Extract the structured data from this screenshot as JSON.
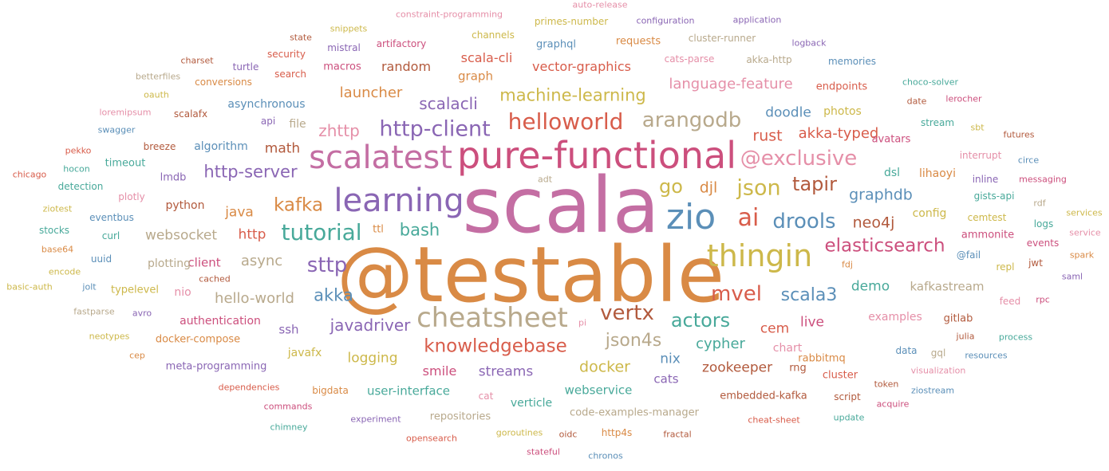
{
  "palette": {
    "pink": "#c46ea3",
    "orange": "#d98a45",
    "blue": "#5b8fb8",
    "purple": "#8a66b4",
    "teal": "#48a99a",
    "olive": "#cdb84a",
    "brown": "#b25a3d",
    "tan": "#b8a98c",
    "red": "#d85d4b",
    "rose": "#e58fa8",
    "magenta": "#cc4f7d"
  },
  "words": [
    {
      "text": "scala",
      "color": "pink"
    },
    {
      "text": "@testable",
      "color": "orange"
    },
    {
      "text": "pure-functional",
      "color": "magenta"
    },
    {
      "text": "scalatest",
      "color": "pink"
    },
    {
      "text": "learning",
      "color": "purple"
    },
    {
      "text": "zio",
      "color": "blue"
    },
    {
      "text": "thingin",
      "color": "olive"
    },
    {
      "text": "cheatsheet",
      "color": "tan"
    },
    {
      "text": "tutorial",
      "color": "teal"
    },
    {
      "text": "helloworld",
      "color": "red"
    },
    {
      "text": "http-client",
      "color": "purple"
    },
    {
      "text": "arangodb",
      "color": "tan"
    },
    {
      "text": "@exclusive",
      "color": "rose"
    },
    {
      "text": "json",
      "color": "olive"
    },
    {
      "text": "ai",
      "color": "red"
    },
    {
      "text": "drools",
      "color": "blue"
    },
    {
      "text": "vertx",
      "color": "brown"
    },
    {
      "text": "mvel",
      "color": "red"
    },
    {
      "text": "sttp",
      "color": "purple"
    },
    {
      "text": "elasticsearch",
      "color": "magenta"
    },
    {
      "text": "knowledgebase",
      "color": "red"
    },
    {
      "text": "actors",
      "color": "teal"
    },
    {
      "text": "json4s",
      "color": "tan"
    },
    {
      "text": "machine-learning",
      "color": "olive"
    },
    {
      "text": "kafka",
      "color": "orange"
    },
    {
      "text": "go",
      "color": "olive"
    },
    {
      "text": "tapir",
      "color": "brown"
    },
    {
      "text": "scala3",
      "color": "blue"
    },
    {
      "text": "http-server",
      "color": "purple"
    },
    {
      "text": "graphdb",
      "color": "blue"
    },
    {
      "text": "neo4j",
      "color": "brown"
    },
    {
      "text": "scalacli",
      "color": "purple"
    },
    {
      "text": "bash",
      "color": "teal"
    },
    {
      "text": "akka",
      "color": "blue"
    },
    {
      "text": "javadriver",
      "color": "purple"
    },
    {
      "text": "zhttp",
      "color": "rose"
    },
    {
      "text": "rust",
      "color": "red"
    },
    {
      "text": "akka-typed",
      "color": "red"
    },
    {
      "text": "hello-world",
      "color": "tan"
    },
    {
      "text": "async",
      "color": "tan"
    },
    {
      "text": "language-feature",
      "color": "rose"
    },
    {
      "text": "doodle",
      "color": "blue"
    },
    {
      "text": "launcher",
      "color": "orange"
    },
    {
      "text": "vector-graphics",
      "color": "red"
    },
    {
      "text": "djl",
      "color": "orange"
    },
    {
      "text": "cypher",
      "color": "teal"
    },
    {
      "text": "docker",
      "color": "olive"
    },
    {
      "text": "zookeeper",
      "color": "brown"
    },
    {
      "text": "live",
      "color": "magenta"
    },
    {
      "text": "cem",
      "color": "red"
    },
    {
      "text": "logging",
      "color": "olive"
    },
    {
      "text": "demo",
      "color": "teal"
    },
    {
      "text": "math",
      "color": "brown"
    },
    {
      "text": "http",
      "color": "red"
    },
    {
      "text": "java",
      "color": "orange"
    },
    {
      "text": "websocket",
      "color": "tan"
    },
    {
      "text": "random",
      "color": "brown"
    },
    {
      "text": "scala-cli",
      "color": "red"
    },
    {
      "text": "graph",
      "color": "orange"
    },
    {
      "text": "streams",
      "color": "purple"
    },
    {
      "text": "smile",
      "color": "magenta"
    },
    {
      "text": "nix",
      "color": "blue"
    },
    {
      "text": "kafkastream",
      "color": "tan"
    },
    {
      "text": "examples",
      "color": "rose"
    },
    {
      "text": "photos",
      "color": "olive"
    },
    {
      "text": "user-interface",
      "color": "teal"
    },
    {
      "text": "webservice",
      "color": "teal"
    },
    {
      "text": "client",
      "color": "magenta"
    },
    {
      "text": "python",
      "color": "brown"
    },
    {
      "text": "algorithm",
      "color": "blue"
    },
    {
      "text": "asynchronous",
      "color": "blue"
    },
    {
      "text": "lihaoyi",
      "color": "orange"
    },
    {
      "text": "ssh",
      "color": "purple"
    },
    {
      "text": "authentication",
      "color": "magenta"
    },
    {
      "text": "avatars",
      "color": "magenta"
    },
    {
      "text": "endpoints",
      "color": "red"
    },
    {
      "text": "requests",
      "color": "orange"
    },
    {
      "text": "graphql",
      "color": "blue"
    },
    {
      "text": "chart",
      "color": "rose"
    },
    {
      "text": "cats",
      "color": "purple"
    },
    {
      "text": "verticle",
      "color": "teal"
    },
    {
      "text": "dsl",
      "color": "teal"
    },
    {
      "text": "config",
      "color": "olive"
    },
    {
      "text": "ammonite",
      "color": "magenta"
    },
    {
      "text": "gitlab",
      "color": "brown"
    },
    {
      "text": "rabbitmq",
      "color": "orange"
    },
    {
      "text": "cluster",
      "color": "red"
    },
    {
      "text": "javafx",
      "color": "olive"
    },
    {
      "text": "file",
      "color": "tan"
    },
    {
      "text": "plotting",
      "color": "tan"
    },
    {
      "text": "nio",
      "color": "rose"
    },
    {
      "text": "ttl",
      "color": "orange"
    },
    {
      "text": "rng",
      "color": "brown"
    },
    {
      "text": "repositories",
      "color": "tan"
    },
    {
      "text": "code-examples-manager",
      "color": "tan"
    },
    {
      "text": "embedded-kafka",
      "color": "brown"
    },
    {
      "text": "meta-programming",
      "color": "purple"
    },
    {
      "text": "docker-compose",
      "color": "orange"
    },
    {
      "text": "channels",
      "color": "olive"
    },
    {
      "text": "macros",
      "color": "magenta"
    },
    {
      "text": "conversions",
      "color": "orange"
    },
    {
      "text": "lmdb",
      "color": "purple"
    },
    {
      "text": "timeout",
      "color": "teal"
    },
    {
      "text": "breeze",
      "color": "brown"
    },
    {
      "text": "typelevel",
      "color": "olive"
    },
    {
      "text": "uuid",
      "color": "blue"
    },
    {
      "text": "curl",
      "color": "teal"
    },
    {
      "text": "plotly",
      "color": "rose"
    },
    {
      "text": "detection",
      "color": "teal"
    },
    {
      "text": "eventbus",
      "color": "blue"
    },
    {
      "text": "stocks",
      "color": "teal"
    },
    {
      "text": "cemtest",
      "color": "olive"
    },
    {
      "text": "repl",
      "color": "olive"
    },
    {
      "text": "jwt",
      "color": "brown"
    },
    {
      "text": "inline",
      "color": "purple"
    },
    {
      "text": "interrupt",
      "color": "rose"
    },
    {
      "text": "sbt",
      "color": "olive"
    },
    {
      "text": "stream",
      "color": "teal"
    },
    {
      "text": "messaging",
      "color": "magenta"
    },
    {
      "text": "gists-api",
      "color": "teal"
    },
    {
      "text": "logs",
      "color": "teal"
    },
    {
      "text": "events",
      "color": "magenta"
    },
    {
      "text": "@fail",
      "color": "blue"
    },
    {
      "text": "data",
      "color": "blue"
    },
    {
      "text": "gql",
      "color": "tan"
    },
    {
      "text": "visualization",
      "color": "rose"
    },
    {
      "text": "julia",
      "color": "brown"
    },
    {
      "text": "process",
      "color": "teal"
    },
    {
      "text": "resources",
      "color": "blue"
    },
    {
      "text": "token",
      "color": "brown"
    },
    {
      "text": "ziostream",
      "color": "blue"
    },
    {
      "text": "acquire",
      "color": "magenta"
    },
    {
      "text": "update",
      "color": "teal"
    },
    {
      "text": "cheat-sheet",
      "color": "red"
    },
    {
      "text": "script",
      "color": "brown"
    },
    {
      "text": "fractal",
      "color": "brown"
    },
    {
      "text": "http4s",
      "color": "orange"
    },
    {
      "text": "oidc",
      "color": "brown"
    },
    {
      "text": "goroutines",
      "color": "olive"
    },
    {
      "text": "chronos",
      "color": "blue"
    },
    {
      "text": "stateful",
      "color": "magenta"
    },
    {
      "text": "opensearch",
      "color": "red"
    },
    {
      "text": "experiment",
      "color": "purple"
    },
    {
      "text": "chimney",
      "color": "teal"
    },
    {
      "text": "commands",
      "color": "magenta"
    },
    {
      "text": "dependencies",
      "color": "red"
    },
    {
      "text": "bigdata",
      "color": "orange"
    },
    {
      "text": "cat",
      "color": "rose"
    },
    {
      "text": "cep",
      "color": "orange"
    },
    {
      "text": "neotypes",
      "color": "olive"
    },
    {
      "text": "avro",
      "color": "purple"
    },
    {
      "text": "fastparse",
      "color": "tan"
    },
    {
      "text": "pi",
      "color": "rose"
    },
    {
      "text": "cached",
      "color": "brown"
    },
    {
      "text": "jolt",
      "color": "blue"
    },
    {
      "text": "basic-auth",
      "color": "olive"
    },
    {
      "text": "encode",
      "color": "olive"
    },
    {
      "text": "base64",
      "color": "orange"
    },
    {
      "text": "ziotest",
      "color": "olive"
    },
    {
      "text": "chicago",
      "color": "red"
    },
    {
      "text": "hocon",
      "color": "teal"
    },
    {
      "text": "pekko",
      "color": "red"
    },
    {
      "text": "swagger",
      "color": "blue"
    },
    {
      "text": "loremipsum",
      "color": "rose"
    },
    {
      "text": "scalafx",
      "color": "brown"
    },
    {
      "text": "api",
      "color": "purple"
    },
    {
      "text": "oauth",
      "color": "olive"
    },
    {
      "text": "betterfiles",
      "color": "tan"
    },
    {
      "text": "charset",
      "color": "brown"
    },
    {
      "text": "turtle",
      "color": "purple"
    },
    {
      "text": "security",
      "color": "red"
    },
    {
      "text": "search",
      "color": "red"
    },
    {
      "text": "state",
      "color": "brown"
    },
    {
      "text": "snippets",
      "color": "olive"
    },
    {
      "text": "mistral",
      "color": "purple"
    },
    {
      "text": "artifactory",
      "color": "magenta"
    },
    {
      "text": "constraint-programming",
      "color": "rose"
    },
    {
      "text": "auto-release",
      "color": "rose"
    },
    {
      "text": "primes-number",
      "color": "olive"
    },
    {
      "text": "configuration",
      "color": "purple"
    },
    {
      "text": "application",
      "color": "purple"
    },
    {
      "text": "cluster-runner",
      "color": "tan"
    },
    {
      "text": "logback",
      "color": "purple"
    },
    {
      "text": "cats-parse",
      "color": "rose"
    },
    {
      "text": "akka-http",
      "color": "tan"
    },
    {
      "text": "memories",
      "color": "blue"
    },
    {
      "text": "choco-solver",
      "color": "teal"
    },
    {
      "text": "date",
      "color": "brown"
    },
    {
      "text": "lerocher",
      "color": "magenta"
    },
    {
      "text": "futures",
      "color": "brown"
    },
    {
      "text": "circe",
      "color": "blue"
    },
    {
      "text": "adt",
      "color": "tan"
    },
    {
      "text": "rdf",
      "color": "tan"
    },
    {
      "text": "services",
      "color": "olive"
    },
    {
      "text": "service",
      "color": "rose"
    },
    {
      "text": "spark",
      "color": "orange"
    },
    {
      "text": "saml",
      "color": "purple"
    },
    {
      "text": "fdj",
      "color": "orange"
    },
    {
      "text": "feed",
      "color": "rose"
    },
    {
      "text": "rpc",
      "color": "magenta"
    }
  ]
}
